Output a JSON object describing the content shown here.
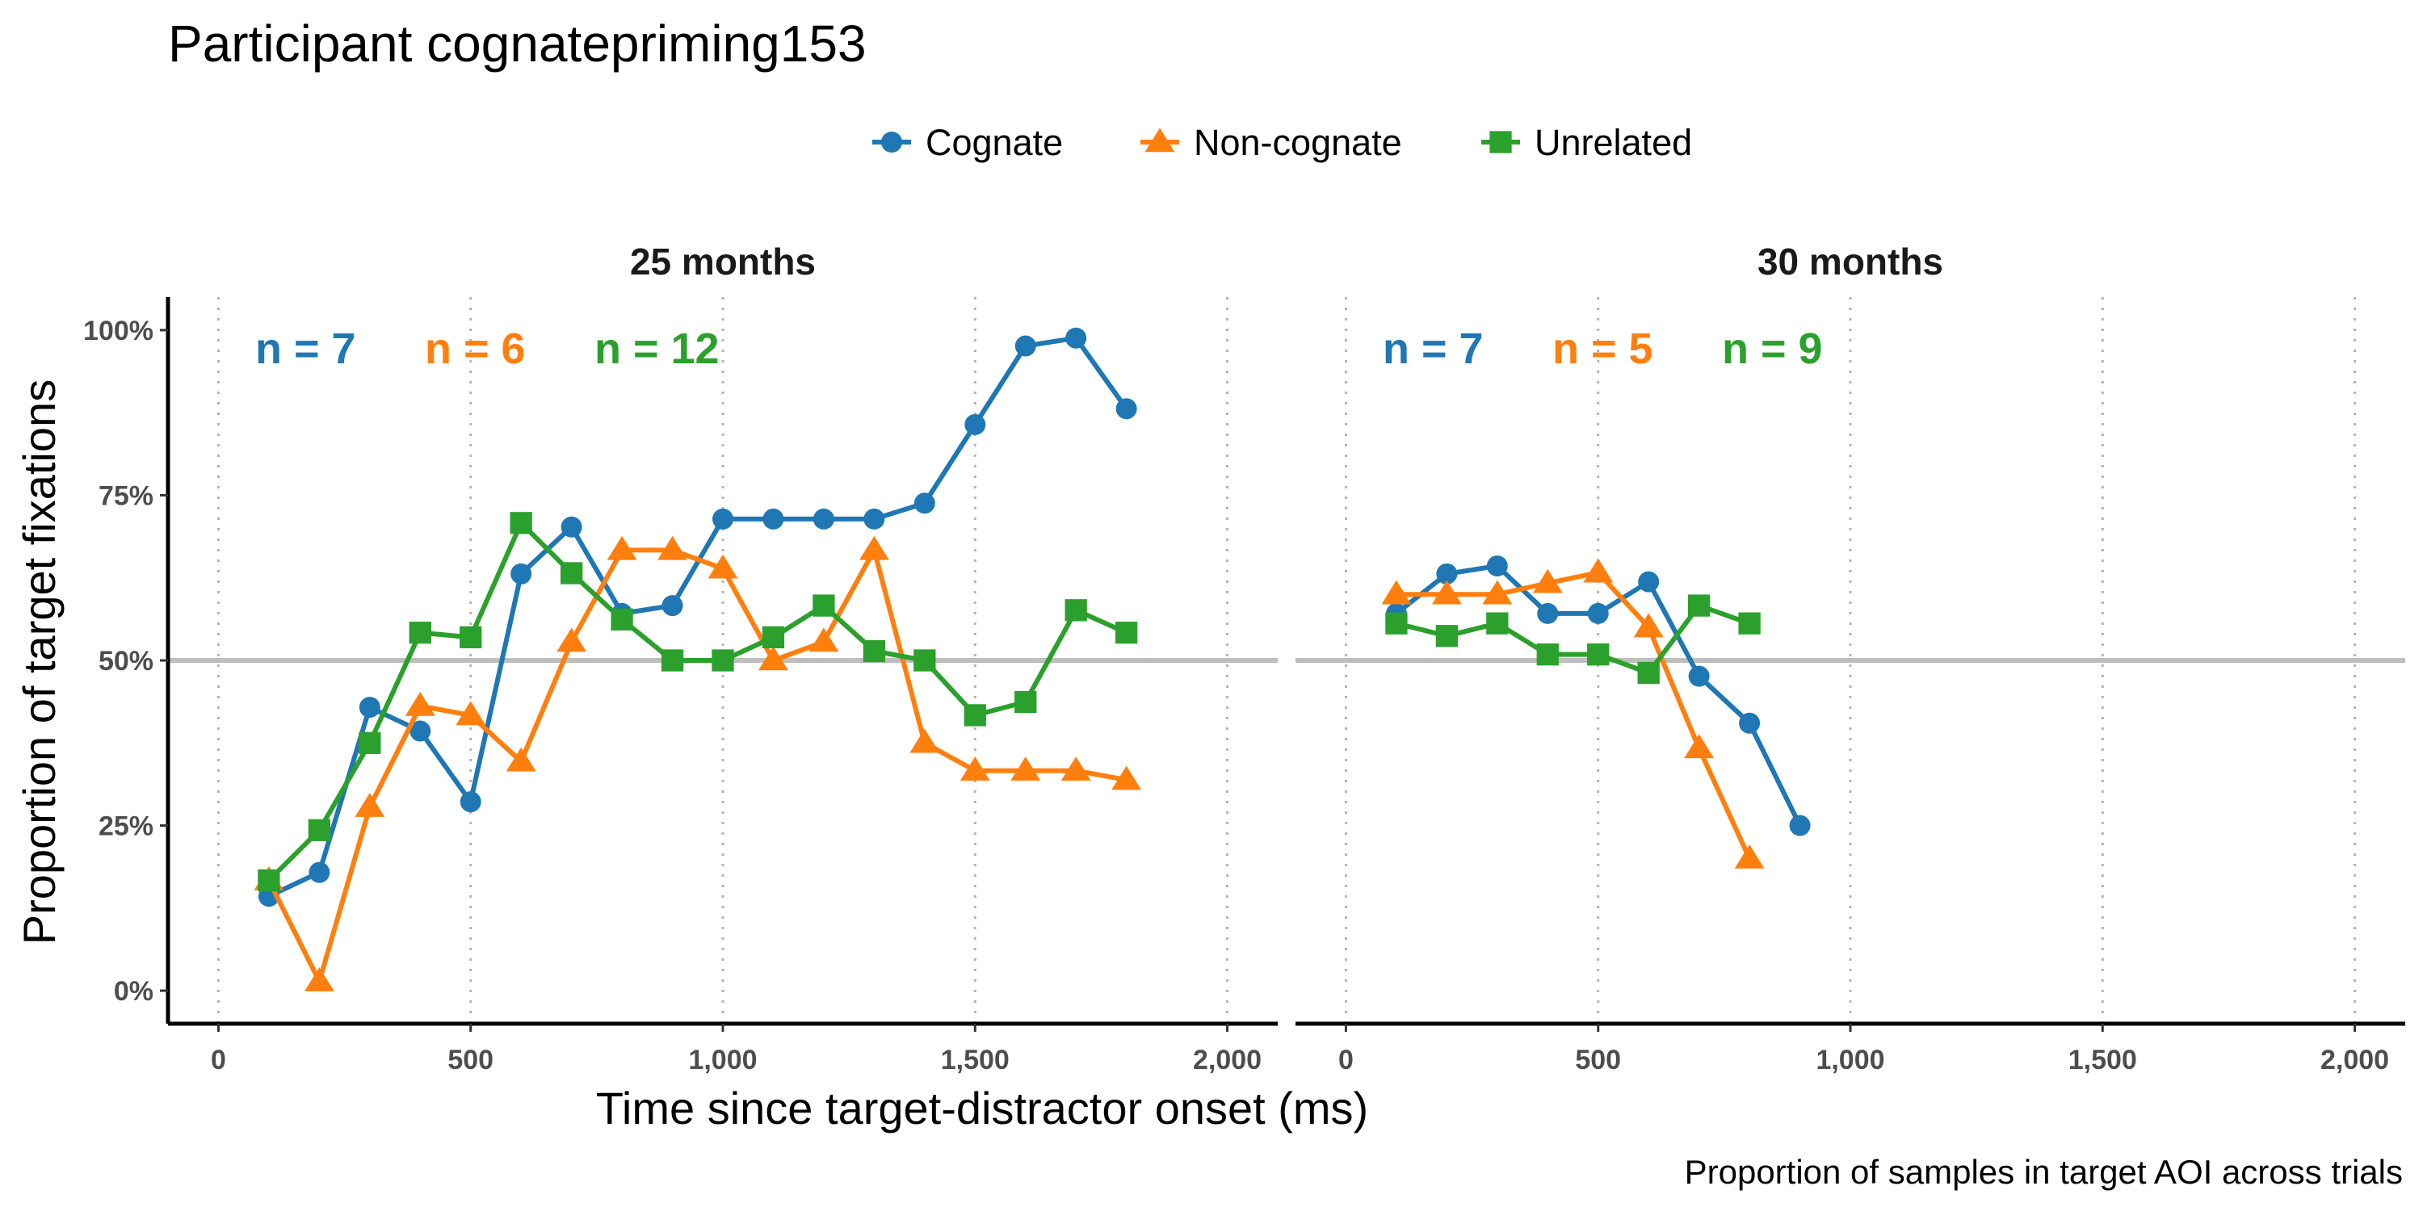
{
  "chart_data": {
    "type": "line",
    "title": "Participant cognatepriming153",
    "xlabel": "Time since target-distractor onset (ms)",
    "ylabel": "Proportion of target fixations",
    "caption": "Proportion of samples in target AOI across trials",
    "xlim": [
      -100,
      2100
    ],
    "ylim": [
      -0.05,
      1.05
    ],
    "x_ticks": [
      {
        "value": 0,
        "label": "0"
      },
      {
        "value": 500,
        "label": "500"
      },
      {
        "value": 1000,
        "label": "1,000"
      },
      {
        "value": 1500,
        "label": "1,500"
      },
      {
        "value": 2000,
        "label": "2,000"
      }
    ],
    "y_ticks": [
      {
        "value": 0,
        "label": "0%"
      },
      {
        "value": 0.25,
        "label": "25%"
      },
      {
        "value": 0.5,
        "label": "50%"
      },
      {
        "value": 0.75,
        "label": "75%"
      },
      {
        "value": 1.0,
        "label": "100%"
      }
    ],
    "reference_line": 0.5,
    "grid": "vertical dotted",
    "legend_position": "top",
    "legend": [
      {
        "name": "Cognate",
        "color": "#1f77b4",
        "shape": "circle"
      },
      {
        "name": "Non-cognate",
        "color": "#ff7f0e",
        "shape": "triangle"
      },
      {
        "name": "Unrelated",
        "color": "#2ca02c",
        "shape": "square"
      }
    ],
    "facets": [
      {
        "title": "25 months",
        "counts": [
          {
            "label": "n = 7",
            "color": "#1f77b4"
          },
          {
            "label": "n = 6",
            "color": "#ff7f0e"
          },
          {
            "label": "n = 12",
            "color": "#2ca02c"
          }
        ],
        "series": [
          {
            "name": "Cognate",
            "color": "#1f77b4",
            "shape": "circle",
            "points": [
              [
                100,
                0.143
              ],
              [
                200,
                0.179
              ],
              [
                300,
                0.429
              ],
              [
                400,
                0.393
              ],
              [
                500,
                0.286
              ],
              [
                600,
                0.631
              ],
              [
                700,
                0.702
              ],
              [
                800,
                0.571
              ],
              [
                900,
                0.583
              ],
              [
                1000,
                0.714
              ],
              [
                1100,
                0.714
              ],
              [
                1200,
                0.714
              ],
              [
                1300,
                0.714
              ],
              [
                1400,
                0.738
              ],
              [
                1500,
                0.857
              ],
              [
                1600,
                0.976
              ],
              [
                1700,
                0.988
              ],
              [
                1800,
                0.881
              ]
            ]
          },
          {
            "name": "Non-cognate",
            "color": "#ff7f0e",
            "shape": "triangle",
            "points": [
              [
                100,
                0.167
              ],
              [
                200,
                0.014
              ],
              [
                300,
                0.278
              ],
              [
                400,
                0.431
              ],
              [
                500,
                0.417
              ],
              [
                600,
                0.347
              ],
              [
                700,
                0.528
              ],
              [
                800,
                0.667
              ],
              [
                900,
                0.667
              ],
              [
                1000,
                0.639
              ],
              [
                1100,
                0.5
              ],
              [
                1200,
                0.528
              ],
              [
                1300,
                0.667
              ],
              [
                1400,
                0.375
              ],
              [
                1500,
                0.333
              ],
              [
                1600,
                0.333
              ],
              [
                1700,
                0.333
              ],
              [
                1800,
                0.319
              ]
            ]
          },
          {
            "name": "Unrelated",
            "color": "#2ca02c",
            "shape": "square",
            "points": [
              [
                100,
                0.167
              ],
              [
                200,
                0.243
              ],
              [
                300,
                0.375
              ],
              [
                400,
                0.542
              ],
              [
                500,
                0.535
              ],
              [
                600,
                0.708
              ],
              [
                700,
                0.632
              ],
              [
                800,
                0.562
              ],
              [
                900,
                0.5
              ],
              [
                1000,
                0.5
              ],
              [
                1100,
                0.535
              ],
              [
                1200,
                0.583
              ],
              [
                1300,
                0.514
              ],
              [
                1400,
                0.5
              ],
              [
                1500,
                0.417
              ],
              [
                1600,
                0.437
              ],
              [
                1700,
                0.576
              ],
              [
                1800,
                0.542
              ]
            ]
          }
        ]
      },
      {
        "title": "30 months",
        "counts": [
          {
            "label": "n = 7",
            "color": "#1f77b4"
          },
          {
            "label": "n = 5",
            "color": "#ff7f0e"
          },
          {
            "label": "n = 9",
            "color": "#2ca02c"
          }
        ],
        "series": [
          {
            "name": "Cognate",
            "color": "#1f77b4",
            "shape": "circle",
            "points": [
              [
                100,
                0.571
              ],
              [
                200,
                0.631
              ],
              [
                300,
                0.643
              ],
              [
                400,
                0.571
              ],
              [
                500,
                0.571
              ],
              [
                600,
                0.619
              ],
              [
                700,
                0.476
              ],
              [
                800,
                0.405
              ],
              [
                900,
                0.25
              ]
            ]
          },
          {
            "name": "Non-cognate",
            "color": "#ff7f0e",
            "shape": "triangle",
            "points": [
              [
                100,
                0.6
              ],
              [
                200,
                0.6
              ],
              [
                300,
                0.6
              ],
              [
                400,
                0.617
              ],
              [
                500,
                0.633
              ],
              [
                600,
                0.55
              ],
              [
                700,
                0.367
              ],
              [
                800,
                0.2
              ]
            ]
          },
          {
            "name": "Unrelated",
            "color": "#2ca02c",
            "shape": "square",
            "points": [
              [
                100,
                0.556
              ],
              [
                200,
                0.537
              ],
              [
                300,
                0.556
              ],
              [
                400,
                0.509
              ],
              [
                500,
                0.509
              ],
              [
                600,
                0.481
              ],
              [
                700,
                0.583
              ],
              [
                800,
                0.556
              ]
            ]
          }
        ]
      }
    ]
  }
}
